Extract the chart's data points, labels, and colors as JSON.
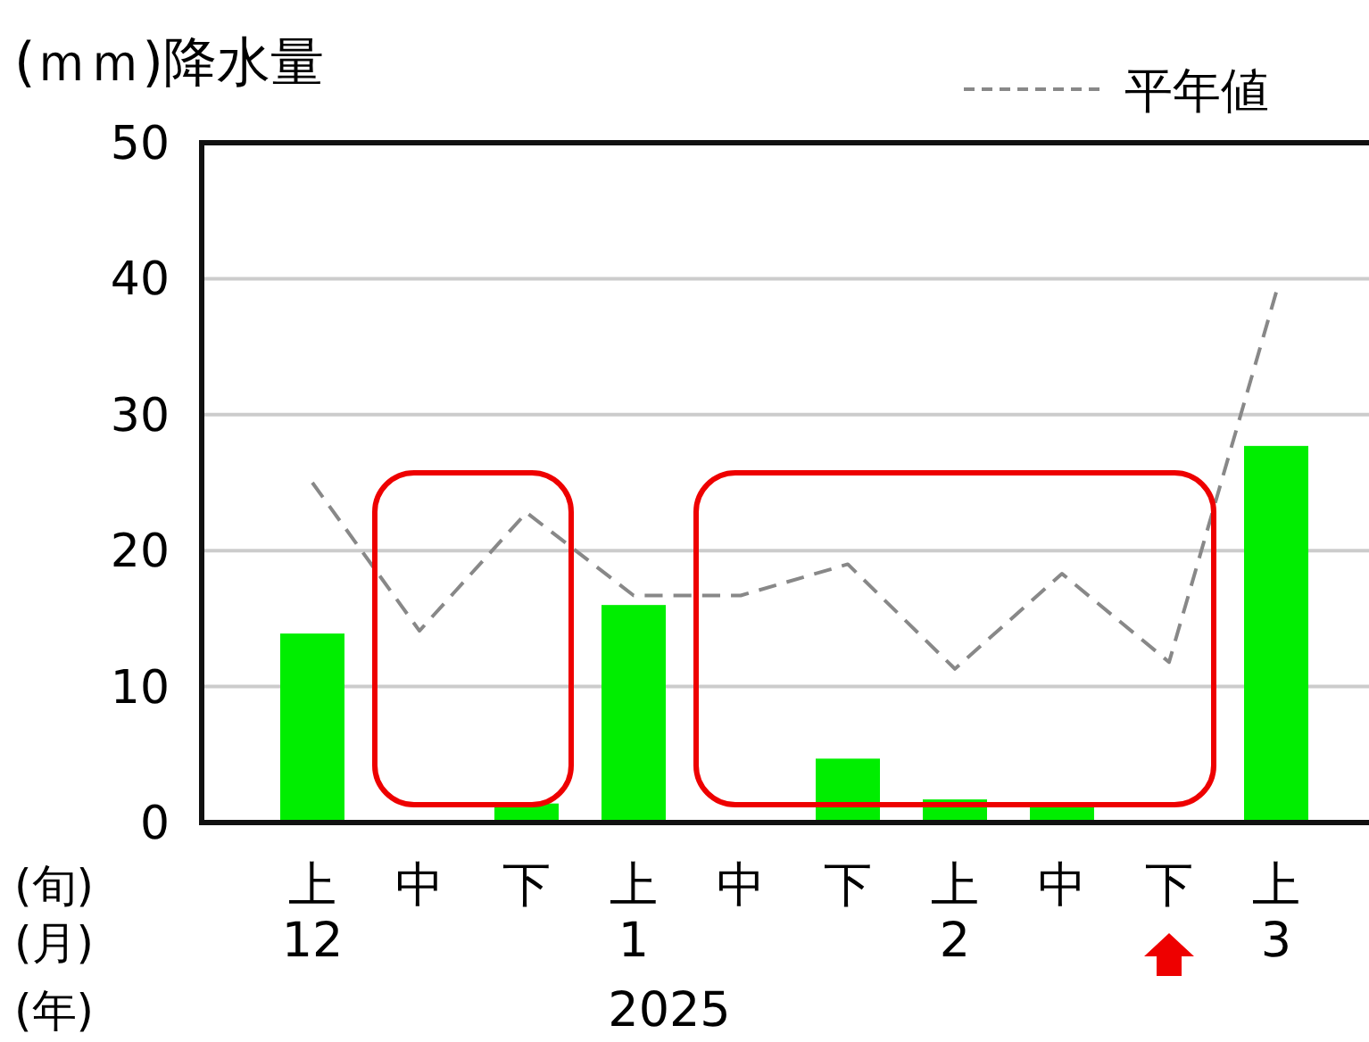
{
  "chart_data": {
    "type": "bar",
    "ylabel": "(ｍｍ)降水量",
    "categories": [
      "上\n12",
      "中",
      "下",
      "上\n1",
      "中",
      "下",
      "上\n2",
      "中",
      "下",
      "上\n3"
    ],
    "series": [
      {
        "color": "#00ee00",
        "values": [
          13.9,
          0,
          1.4,
          16.0,
          0,
          4.7,
          1.7,
          1.4,
          0,
          27.7
        ]
      },
      {
        "type": "line",
        "name": "平年値",
        "color": "#888888",
        "line_style": "dashed",
        "values": [
          25.0,
          14.1,
          22.8,
          16.7,
          16.7,
          19.0,
          11.3,
          18.3,
          11.8,
          39.0
        ]
      }
    ],
    "ylim": [
      0,
      50
    ],
    "yticks": [
      0,
      10,
      20,
      30,
      40,
      50
    ],
    "grid": "y",
    "legend": "top right",
    "annotations": [
      "(旬)",
      "(月)",
      "(年)",
      "2025"
    ]
  }
}
